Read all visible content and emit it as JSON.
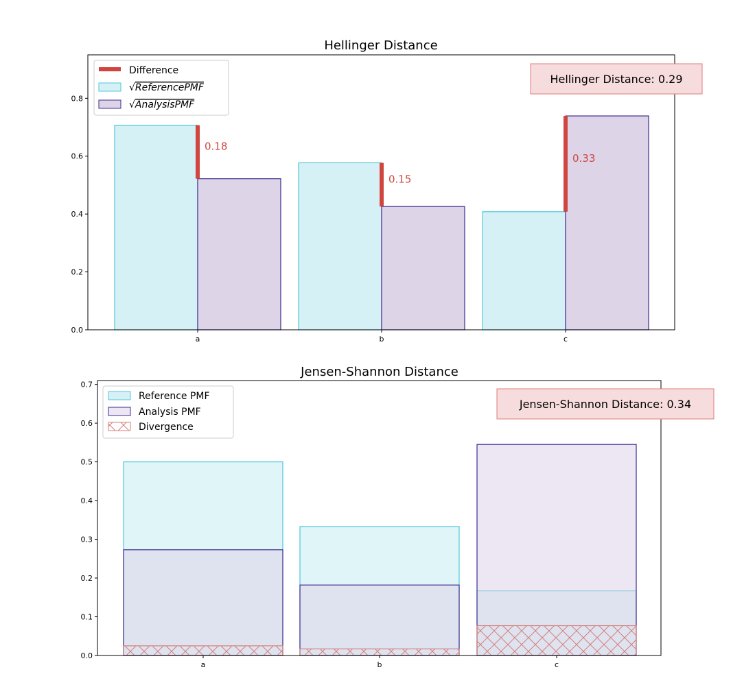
{
  "colors": {
    "reference_face": "#d6f1f6",
    "reference_edge": "#4cc7db",
    "analysis_face": "#ddd4e7",
    "analysis_edge": "#3f2a91",
    "difference": "#d0453f",
    "divergence_edge": "#d6807c",
    "axis": "#000000",
    "annotation_face": "#f6dcdc",
    "annotation_edge": "#e07c79"
  },
  "chart_data": [
    {
      "type": "bar",
      "title": "Hellinger Distance",
      "categories": [
        "a",
        "b",
        "c"
      ],
      "ylim": [
        0,
        0.95
      ],
      "yticks": [
        "0.0",
        "0.2",
        "0.4",
        "0.6",
        "0.8"
      ],
      "grid": false,
      "legend_position": "top-left",
      "series": [
        {
          "name": "√ReferencePMF",
          "legend_label": "√",
          "legend_label_italic": "ReferencePMF",
          "values": [
            0.707,
            0.577,
            0.408
          ]
        },
        {
          "name": "√AnalysisPMF",
          "legend_label": "√",
          "legend_label_italic": "AnalysisPMF",
          "values": [
            0.522,
            0.426,
            0.739
          ]
        }
      ],
      "difference": {
        "name": "Difference",
        "values": [
          0.18,
          0.15,
          0.33
        ],
        "labels": [
          "0.18",
          "0.15",
          "0.33"
        ]
      },
      "annotation": "Hellinger Distance: 0.29"
    },
    {
      "type": "bar",
      "title": "Jensen-Shannon Distance",
      "categories": [
        "a",
        "b",
        "c"
      ],
      "ylim": [
        0,
        0.71
      ],
      "yticks": [
        "0.0",
        "0.1",
        "0.2",
        "0.3",
        "0.4",
        "0.5",
        "0.6",
        "0.7"
      ],
      "grid": false,
      "legend_position": "top-left",
      "series": [
        {
          "name": "Reference PMF",
          "values": [
            0.5,
            0.333,
            0.167
          ]
        },
        {
          "name": "Analysis PMF",
          "values": [
            0.273,
            0.182,
            0.545
          ]
        },
        {
          "name": "Divergence",
          "values": [
            0.025,
            0.017,
            0.077
          ]
        }
      ],
      "annotation": "Jensen-Shannon Distance: 0.34"
    }
  ]
}
